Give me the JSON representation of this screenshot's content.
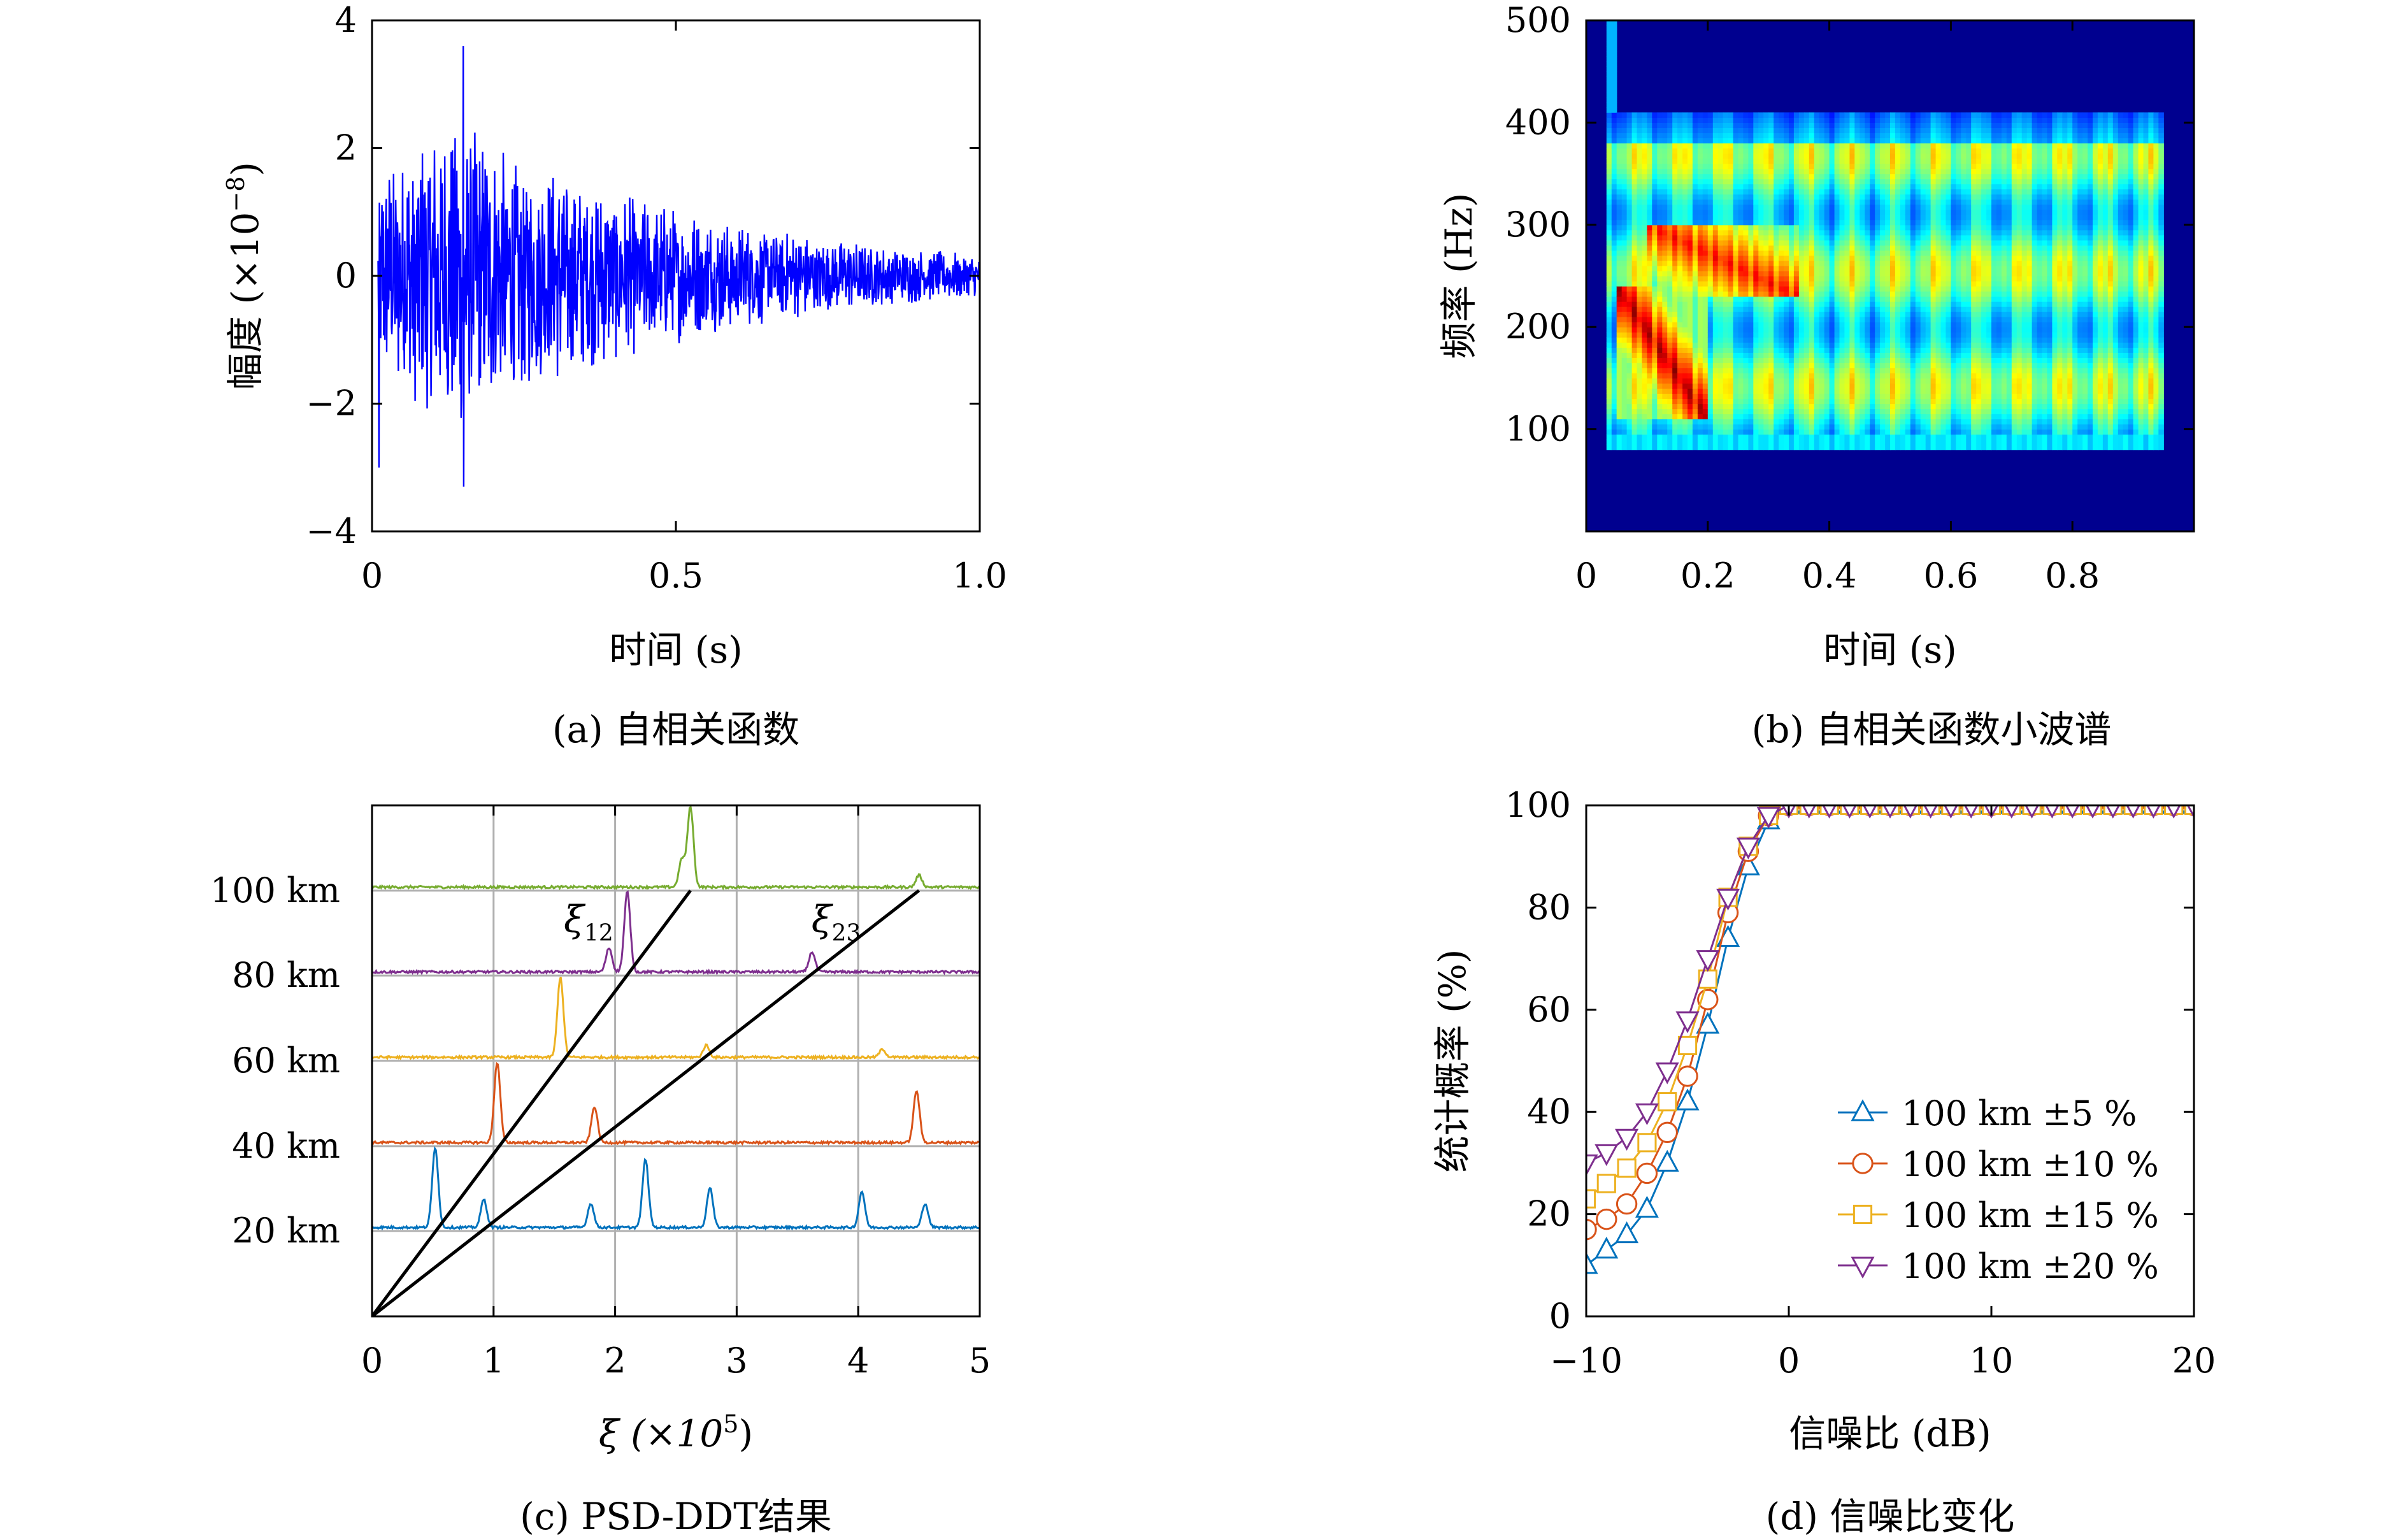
{
  "captions": {
    "a": "(a) 自相关函数",
    "b": "(b) 自相关函数小波谱",
    "c": "(c) PSD-DDT结果",
    "d": "(d) 信噪比变化"
  },
  "chart_data": [
    {
      "id": "a",
      "type": "line",
      "xlabel": "时间 (s)",
      "ylabel": "幅度 (×10",
      "ylabel_exp": "−8",
      "ylabel_close": ")",
      "xlim": [
        0,
        1.0
      ],
      "ylim": [
        -4,
        4
      ],
      "xticks": [
        0,
        0.5,
        1.0
      ],
      "xtick_labels": [
        "0",
        "0.5",
        "1.0"
      ],
      "yticks": [
        -4,
        -2,
        0,
        2,
        4
      ],
      "ytick_labels": [
        "−4",
        "−2",
        "0",
        "2",
        "4"
      ],
      "color": "#0000ff",
      "envelope": {
        "peak": 3.6,
        "peak_time": 0.15,
        "onset": 0.01,
        "decay_end": 1.0
      },
      "notable_extremes": [
        {
          "x": 0.15,
          "y": 3.6
        },
        {
          "x": 0.15,
          "y": -3.3
        },
        {
          "x": 0.012,
          "y": -3.0
        }
      ]
    },
    {
      "id": "b",
      "type": "heatmap",
      "xlabel": "时间 (s)",
      "ylabel": "频率 (Hz)",
      "xlim": [
        0,
        1.0
      ],
      "ylim": [
        0,
        500
      ],
      "xticks": [
        0,
        0.2,
        0.4,
        0.6,
        0.8
      ],
      "xtick_labels": [
        "0",
        "0.2",
        "0.4",
        "0.6",
        "0.8"
      ],
      "yticks": [
        100,
        200,
        300,
        400,
        500
      ],
      "ytick_labels": [
        "100",
        "200",
        "300",
        "400",
        "500"
      ],
      "colormap": "jet",
      "background_color": "#00008f",
      "signal_time_range": [
        0.03,
        0.95
      ],
      "signal_freq_range": [
        80,
        410
      ],
      "hot_bands": [
        {
          "t": [
            0.05,
            0.2
          ],
          "f": [
            110,
            240
          ],
          "level": 1.0
        },
        {
          "t": [
            0.1,
            0.35
          ],
          "f": [
            230,
            300
          ],
          "level": 0.9
        }
      ]
    },
    {
      "id": "c",
      "type": "line",
      "xlabel": "ξ (×10",
      "xlabel_exp": "5",
      "xlabel_close": ")",
      "xlim": [
        0,
        5
      ],
      "xticks": [
        0,
        1,
        2,
        3,
        4,
        5
      ],
      "xtick_labels": [
        "0",
        "1",
        "2",
        "3",
        "4",
        "5"
      ],
      "grid": true,
      "traces": [
        {
          "name": "100 km",
          "baseline_index": 5,
          "color": "#77ac30",
          "peaks": [
            {
              "x": 2.62,
              "h": 1.0
            },
            {
              "x": 2.55,
              "h": 0.35
            },
            {
              "x": 4.5,
              "h": 0.15
            }
          ]
        },
        {
          "name": "80 km",
          "baseline_index": 4,
          "color": "#7e2f8e",
          "peaks": [
            {
              "x": 2.1,
              "h": 1.0
            },
            {
              "x": 1.95,
              "h": 0.3
            },
            {
              "x": 3.62,
              "h": 0.25
            }
          ]
        },
        {
          "name": "60 km",
          "baseline_index": 3,
          "color": "#edb120",
          "peaks": [
            {
              "x": 1.55,
              "h": 1.0
            },
            {
              "x": 2.75,
              "h": 0.15
            },
            {
              "x": 4.2,
              "h": 0.1
            }
          ]
        },
        {
          "name": "40 km",
          "baseline_index": 2,
          "color": "#d95319",
          "peaks": [
            {
              "x": 1.03,
              "h": 1.0
            },
            {
              "x": 1.83,
              "h": 0.45
            },
            {
              "x": 4.48,
              "h": 0.65
            }
          ]
        },
        {
          "name": "20 km",
          "baseline_index": 1,
          "color": "#0072bd",
          "peaks": [
            {
              "x": 0.52,
              "h": 1.0
            },
            {
              "x": 0.92,
              "h": 0.35
            },
            {
              "x": 1.8,
              "h": 0.3
            },
            {
              "x": 2.25,
              "h": 0.85
            },
            {
              "x": 2.78,
              "h": 0.5
            },
            {
              "x": 4.03,
              "h": 0.45
            },
            {
              "x": 4.55,
              "h": 0.3
            }
          ]
        }
      ],
      "lines": [
        {
          "label": "ξ",
          "label_sub": "12",
          "from": [
            0,
            0
          ],
          "to": [
            2.62,
            5
          ]
        },
        {
          "label": "ξ",
          "label_sub": "23",
          "from": [
            0,
            0
          ],
          "to": [
            4.5,
            5
          ]
        }
      ]
    },
    {
      "id": "d",
      "type": "line",
      "xlabel": "信噪比 (dB)",
      "ylabel": "统计概率 (%)",
      "xlim": [
        -10,
        20
      ],
      "ylim": [
        0,
        100
      ],
      "xticks": [
        -10,
        0,
        10,
        20
      ],
      "xtick_labels": [
        "−10",
        "0",
        "10",
        "20"
      ],
      "yticks": [
        0,
        20,
        40,
        60,
        80,
        100
      ],
      "ytick_labels": [
        "0",
        "20",
        "40",
        "60",
        "80",
        "100"
      ],
      "legend_position": "lower-right",
      "x": [
        -10,
        -9,
        -8,
        -7,
        -6,
        -5,
        -4,
        -3,
        -2,
        -1,
        0,
        1,
        2,
        3,
        4,
        5,
        6,
        7,
        8,
        9,
        10,
        11,
        12,
        13,
        14,
        15,
        16,
        17,
        18,
        19,
        20
      ],
      "series": [
        {
          "name": "100 km ±5 %",
          "color": "#0072bd",
          "marker": "triangle-up",
          "values": [
            10,
            13,
            16,
            21,
            30,
            42,
            57,
            74,
            88,
            97,
            100,
            100,
            100,
            100,
            100,
            100,
            100,
            100,
            100,
            100,
            100,
            100,
            100,
            100,
            100,
            100,
            100,
            100,
            100,
            100,
            100
          ]
        },
        {
          "name": "100 km ±10 %",
          "color": "#d95319",
          "marker": "circle",
          "values": [
            17,
            19,
            22,
            28,
            36,
            47,
            62,
            79,
            91,
            98,
            100,
            100,
            100,
            100,
            100,
            100,
            100,
            100,
            100,
            100,
            100,
            100,
            100,
            100,
            100,
            100,
            100,
            100,
            100,
            100,
            100
          ]
        },
        {
          "name": "100 km ±15 %",
          "color": "#edb120",
          "marker": "square",
          "values": [
            23,
            26,
            29,
            34,
            42,
            53,
            66,
            82,
            92,
            98,
            100,
            100,
            100,
            100,
            100,
            100,
            100,
            100,
            100,
            100,
            100,
            100,
            100,
            100,
            100,
            100,
            100,
            100,
            100,
            100,
            100
          ]
        },
        {
          "name": "100 km ±20 %",
          "color": "#7e2f8e",
          "marker": "triangle-down",
          "values": [
            30,
            32,
            35,
            40,
            48,
            58,
            70,
            82,
            92,
            98,
            100,
            100,
            100,
            100,
            100,
            100,
            100,
            100,
            100,
            100,
            100,
            100,
            100,
            100,
            100,
            100,
            100,
            100,
            100,
            100,
            100
          ]
        }
      ]
    }
  ]
}
